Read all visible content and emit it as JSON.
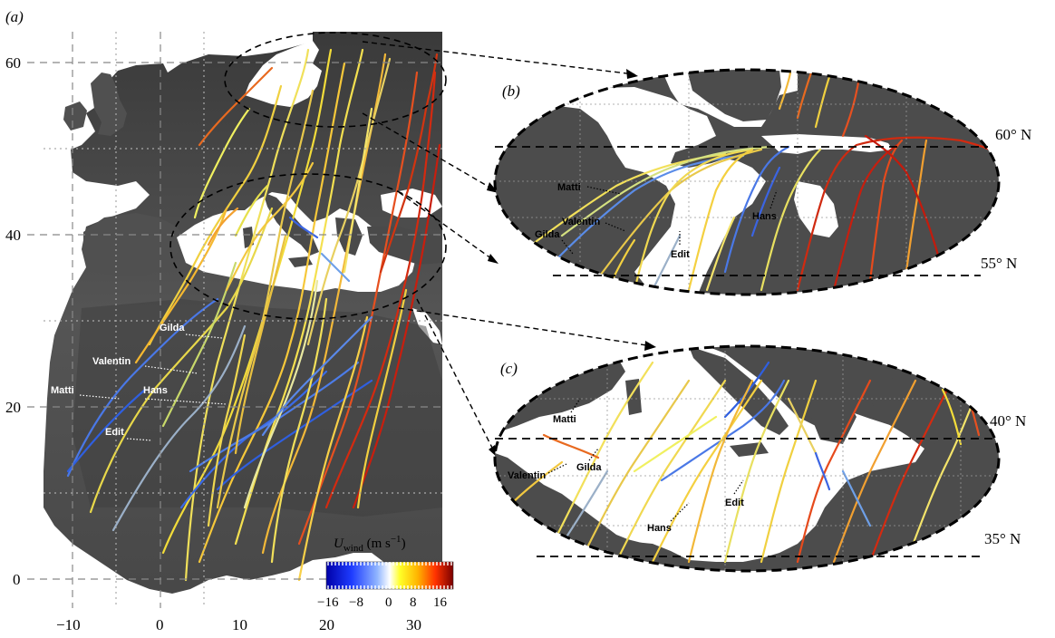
{
  "figure": {
    "panels": {
      "a": "(a)",
      "b": "(b)",
      "c": "(c)"
    },
    "x_ticks": [
      "−10",
      "0",
      "10",
      "20",
      "30"
    ],
    "y_ticks": [
      "60",
      "40",
      "20",
      "0"
    ],
    "colorbar": {
      "title_main": "U",
      "title_sub": "wind",
      "title_unit": " (m s",
      "title_sup": "−1",
      "title_close": ")",
      "ticks": [
        "−16",
        "−8",
        "0",
        "8",
        "16"
      ],
      "min": -16,
      "max": 16,
      "colors": [
        "#0000a8",
        "#1e3cff",
        "#6f96ff",
        "#ffffff",
        "#ffff28",
        "#ffb400",
        "#ff4600",
        "#c80000",
        "#780000"
      ]
    },
    "panel_b_lat_labels": [
      "60° N",
      "55° N"
    ],
    "panel_c_lat_labels": [
      "40° N",
      "35° N"
    ],
    "birds_main": [
      "Gilda",
      "Valentin",
      "Matti",
      "Hans",
      "Edit"
    ],
    "birds_b": [
      "Matti",
      "Valentin",
      "Gilda",
      "Edit",
      "Hans"
    ],
    "birds_c": [
      "Matti",
      "Valentin",
      "Gilda",
      "Edit",
      "Hans"
    ],
    "colors": {
      "land": "#4a4a4a",
      "sea": "#ffffff",
      "grid": "#888888"
    }
  }
}
